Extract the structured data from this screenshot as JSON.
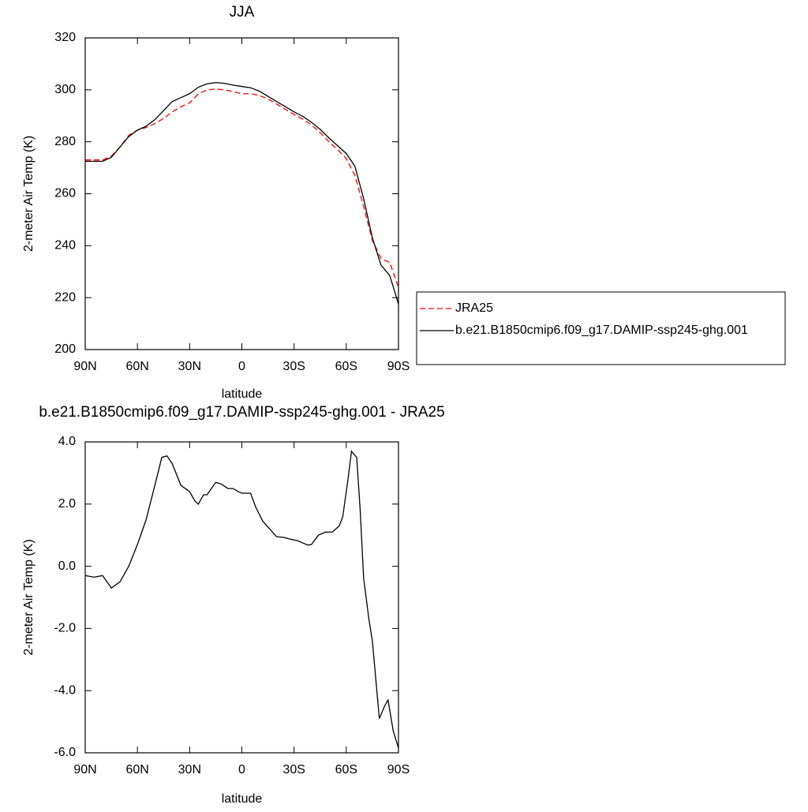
{
  "chart_data": [
    {
      "type": "line",
      "title": "JJA",
      "xlabel": "latitude",
      "ylabel": "2-meter Air Temp (K)",
      "x": [
        90,
        85,
        80,
        75,
        70,
        65,
        60,
        55,
        50,
        45,
        40,
        35,
        30,
        25,
        20,
        15,
        10,
        5,
        0,
        -5,
        -10,
        -15,
        -20,
        -25,
        -30,
        -35,
        -40,
        -45,
        -50,
        -55,
        -60,
        -65,
        -70,
        -75,
        -80,
        -85,
        -90
      ],
      "series": [
        {
          "name": "JRA25",
          "color": "#ff0000",
          "dash": "dashed",
          "values": [
            273,
            273,
            273,
            274.5,
            278,
            282.5,
            284.5,
            285.5,
            287,
            289,
            291.5,
            293.5,
            295,
            298.5,
            300,
            300.3,
            300,
            299.3,
            298.5,
            298.5,
            297.8,
            296.5,
            294.5,
            292.5,
            290.5,
            288.7,
            286.5,
            283.5,
            280,
            277,
            273.5,
            267,
            255,
            242,
            235,
            233.5,
            224
          ]
        },
        {
          "name": "b.e21.B1850cmip6.f09_g17.DAMIP-ssp245-ghg.001",
          "color": "#000000",
          "dash": "solid",
          "values": [
            272.5,
            272.5,
            272.5,
            274,
            278,
            282,
            284.5,
            286,
            288.5,
            292,
            295.5,
            297,
            298.5,
            301,
            302.3,
            302.8,
            302.5,
            301.8,
            301.3,
            300.8,
            299.5,
            297.5,
            295.5,
            293.5,
            291.5,
            289.8,
            287.5,
            284.8,
            281.5,
            278.5,
            275.5,
            270.5,
            258,
            243,
            232.5,
            228.5,
            217.5
          ]
        }
      ],
      "xlim": [
        90,
        -90
      ],
      "xticks": [
        {
          "value": 90,
          "label": "90N"
        },
        {
          "value": 60,
          "label": "60N"
        },
        {
          "value": 30,
          "label": "30N"
        },
        0,
        {
          "value": -30,
          "label": "30S"
        },
        {
          "value": -60,
          "label": "60S"
        },
        {
          "value": -90,
          "label": "90S"
        }
      ],
      "ylim": [
        200,
        320
      ],
      "yticks": [
        200,
        220,
        240,
        260,
        280,
        300,
        320
      ],
      "legend": "right"
    },
    {
      "type": "line",
      "title": "b.e21.B1850cmip6.f09_g17.DAMIP-ssp245-ghg.001 - JRA25",
      "xlabel": "latitude",
      "ylabel": "2-meter Air Temp (K)",
      "x": [
        90,
        85,
        80,
        75,
        70,
        65,
        60,
        55,
        50,
        46,
        43,
        40,
        35,
        30,
        27,
        25,
        22,
        20,
        15,
        12,
        8,
        5,
        2,
        0,
        -5,
        -8,
        -12,
        -16,
        -20,
        -24,
        -28,
        -32,
        -35,
        -38,
        -40,
        -44,
        -48,
        -52,
        -56,
        -58,
        -61,
        -63,
        -66,
        -68,
        -70,
        -73,
        -75,
        -79,
        -82,
        -84,
        -87,
        -90
      ],
      "series": [
        {
          "color": "#000000",
          "dash": "solid",
          "values": [
            -0.3,
            -0.35,
            -0.3,
            -0.7,
            -0.5,
            0.0,
            0.7,
            1.5,
            2.6,
            3.5,
            3.55,
            3.3,
            2.6,
            2.4,
            2.1,
            2.0,
            2.3,
            2.3,
            2.7,
            2.65,
            2.5,
            2.5,
            2.4,
            2.35,
            2.35,
            1.9,
            1.45,
            1.2,
            0.95,
            0.93,
            0.87,
            0.82,
            0.75,
            0.68,
            0.7,
            1.0,
            1.1,
            1.1,
            1.3,
            1.6,
            2.8,
            3.7,
            3.5,
            1.8,
            -0.4,
            -1.7,
            -2.4,
            -4.9,
            -4.5,
            -4.3,
            -5.3,
            -5.85
          ]
        }
      ],
      "xlim": [
        90,
        -90
      ],
      "xticks": [
        {
          "value": 90,
          "label": "90N"
        },
        {
          "value": 60,
          "label": "60N"
        },
        {
          "value": 30,
          "label": "30N"
        },
        0,
        {
          "value": -30,
          "label": "30S"
        },
        {
          "value": -60,
          "label": "60S"
        },
        {
          "value": -90,
          "label": "90S"
        }
      ],
      "ylim": [
        -6,
        4
      ],
      "yticks": [
        {
          "value": -6,
          "label": "-6.0"
        },
        {
          "value": -4,
          "label": "-4.0"
        },
        {
          "value": -2,
          "label": "-2.0"
        },
        {
          "value": 0,
          "label": "0.0"
        },
        {
          "value": 2,
          "label": "2.0"
        },
        {
          "value": 4,
          "label": "4.0"
        }
      ]
    }
  ]
}
